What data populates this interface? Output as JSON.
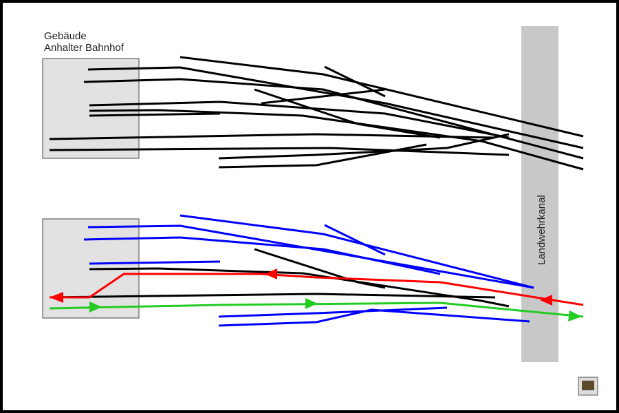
{
  "building": {
    "line1": "Gebäude",
    "line2": "Anhalter Bahnhof"
  },
  "canal": {
    "label": "Landwehrkanal"
  }
}
